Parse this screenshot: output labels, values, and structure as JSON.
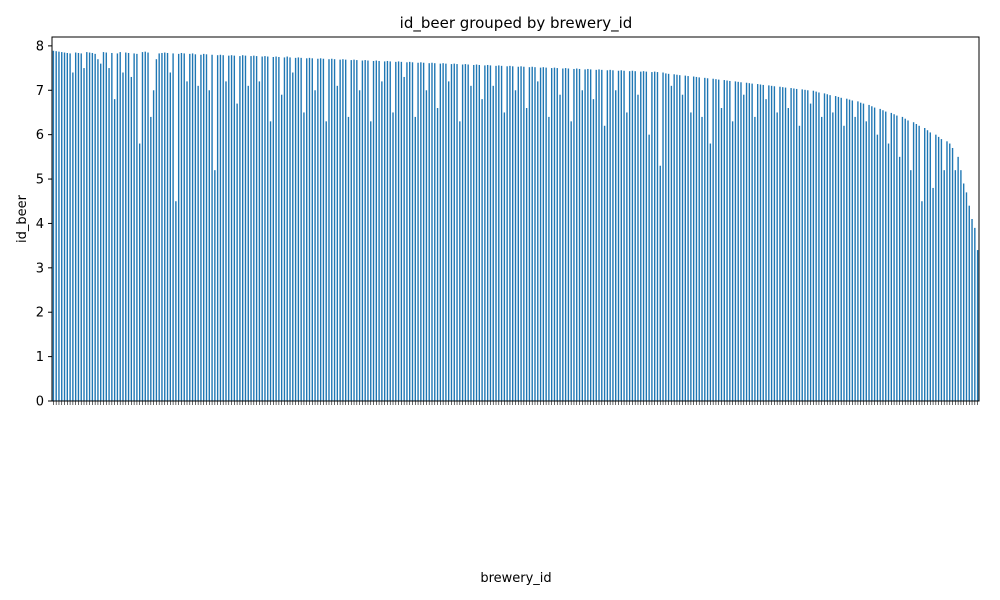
{
  "chart_data": {
    "type": "bar",
    "title": "id_beer grouped by brewery_id",
    "xlabel": "brewery_id",
    "ylabel": "id_beer",
    "ylim": [
      0,
      8.2
    ],
    "yticks": [
      "0",
      "1",
      "2",
      "3",
      "4",
      "5",
      "6",
      "7",
      "8"
    ],
    "bar_color": "#1f77b4",
    "grid": false,
    "legend": "none",
    "categories_note": "",
    "values": [
      7.89,
      7.88,
      7.87,
      7.86,
      7.85,
      7.84,
      7.83,
      7.4,
      7.85,
      7.84,
      7.83,
      7.5,
      7.86,
      7.85,
      7.84,
      7.82,
      7.7,
      7.6,
      7.86,
      7.85,
      7.5,
      7.84,
      6.8,
      7.83,
      7.86,
      7.4,
      7.85,
      7.84,
      7.3,
      7.83,
      7.82,
      5.8,
      7.86,
      7.87,
      7.85,
      6.4,
      7.0,
      7.7,
      7.83,
      7.84,
      7.85,
      7.84,
      7.4,
      7.83,
      4.5,
      7.82,
      7.84,
      7.83,
      7.2,
      7.82,
      7.83,
      7.81,
      7.1,
      7.8,
      7.82,
      7.81,
      7.0,
      7.8,
      5.2,
      7.79,
      7.8,
      7.79,
      7.2,
      7.78,
      7.79,
      7.78,
      6.7,
      7.77,
      7.79,
      7.78,
      7.1,
      7.77,
      7.78,
      7.77,
      7.2,
      7.76,
      7.77,
      7.76,
      6.3,
      7.75,
      7.76,
      7.75,
      6.9,
      7.74,
      7.76,
      7.74,
      7.4,
      7.73,
      7.74,
      7.73,
      6.5,
      7.72,
      7.73,
      7.72,
      7.0,
      7.71,
      7.72,
      7.71,
      6.3,
      7.7,
      7.71,
      7.7,
      7.1,
      7.69,
      7.7,
      7.69,
      6.4,
      7.68,
      7.69,
      7.68,
      7.0,
      7.67,
      7.68,
      7.67,
      6.3,
      7.66,
      7.67,
      7.66,
      7.2,
      7.65,
      7.66,
      7.65,
      6.5,
      7.64,
      7.65,
      7.64,
      7.3,
      7.63,
      7.64,
      7.63,
      6.4,
      7.62,
      7.63,
      7.62,
      7.0,
      7.61,
      7.62,
      7.61,
      6.6,
      7.6,
      7.61,
      7.6,
      7.2,
      7.59,
      7.6,
      7.59,
      6.3,
      7.58,
      7.59,
      7.58,
      7.1,
      7.57,
      7.58,
      7.57,
      6.8,
      7.56,
      7.57,
      7.56,
      7.1,
      7.55,
      7.56,
      7.55,
      6.5,
      7.54,
      7.55,
      7.54,
      7.0,
      7.53,
      7.54,
      7.53,
      6.6,
      7.52,
      7.53,
      7.52,
      7.2,
      7.51,
      7.52,
      7.51,
      6.4,
      7.5,
      7.51,
      7.5,
      6.9,
      7.49,
      7.5,
      7.49,
      6.3,
      7.48,
      7.49,
      7.48,
      7.0,
      7.47,
      7.48,
      7.47,
      6.8,
      7.46,
      7.47,
      7.46,
      6.2,
      7.45,
      7.46,
      7.45,
      7.0,
      7.44,
      7.45,
      7.44,
      6.5,
      7.43,
      7.44,
      7.43,
      6.9,
      7.42,
      7.43,
      7.42,
      6.0,
      7.41,
      7.42,
      7.41,
      5.3,
      7.4,
      7.38,
      7.37,
      7.1,
      7.36,
      7.35,
      7.34,
      6.9,
      7.33,
      7.32,
      6.5,
      7.31,
      7.3,
      7.29,
      6.4,
      7.28,
      7.27,
      5.8,
      7.26,
      7.25,
      7.24,
      6.6,
      7.23,
      7.22,
      7.21,
      6.3,
      7.2,
      7.19,
      7.18,
      6.9,
      7.17,
      7.16,
      7.15,
      6.4,
      7.14,
      7.13,
      7.12,
      6.8,
      7.11,
      7.1,
      7.09,
      6.5,
      7.08,
      7.07,
      7.06,
      6.6,
      7.05,
      7.04,
      7.03,
      6.2,
      7.02,
      7.01,
      7.0,
      6.7,
      6.99,
      6.97,
      6.95,
      6.4,
      6.93,
      6.91,
      6.89,
      6.5,
      6.87,
      6.85,
      6.83,
      6.2,
      6.81,
      6.79,
      6.77,
      6.4,
      6.75,
      6.72,
      6.7,
      6.3,
      6.67,
      6.64,
      6.61,
      6.0,
      6.58,
      6.55,
      6.52,
      5.8,
      6.49,
      6.46,
      6.43,
      5.5,
      6.4,
      6.36,
      6.32,
      5.2,
      6.28,
      6.24,
      6.2,
      4.5,
      6.15,
      6.1,
      6.05,
      4.8,
      6.0,
      5.95,
      5.9,
      5.2,
      5.85,
      5.8,
      5.7,
      5.2,
      5.5,
      5.2,
      4.9,
      4.7,
      4.4,
      4.1,
      3.9,
      3.4
    ]
  }
}
